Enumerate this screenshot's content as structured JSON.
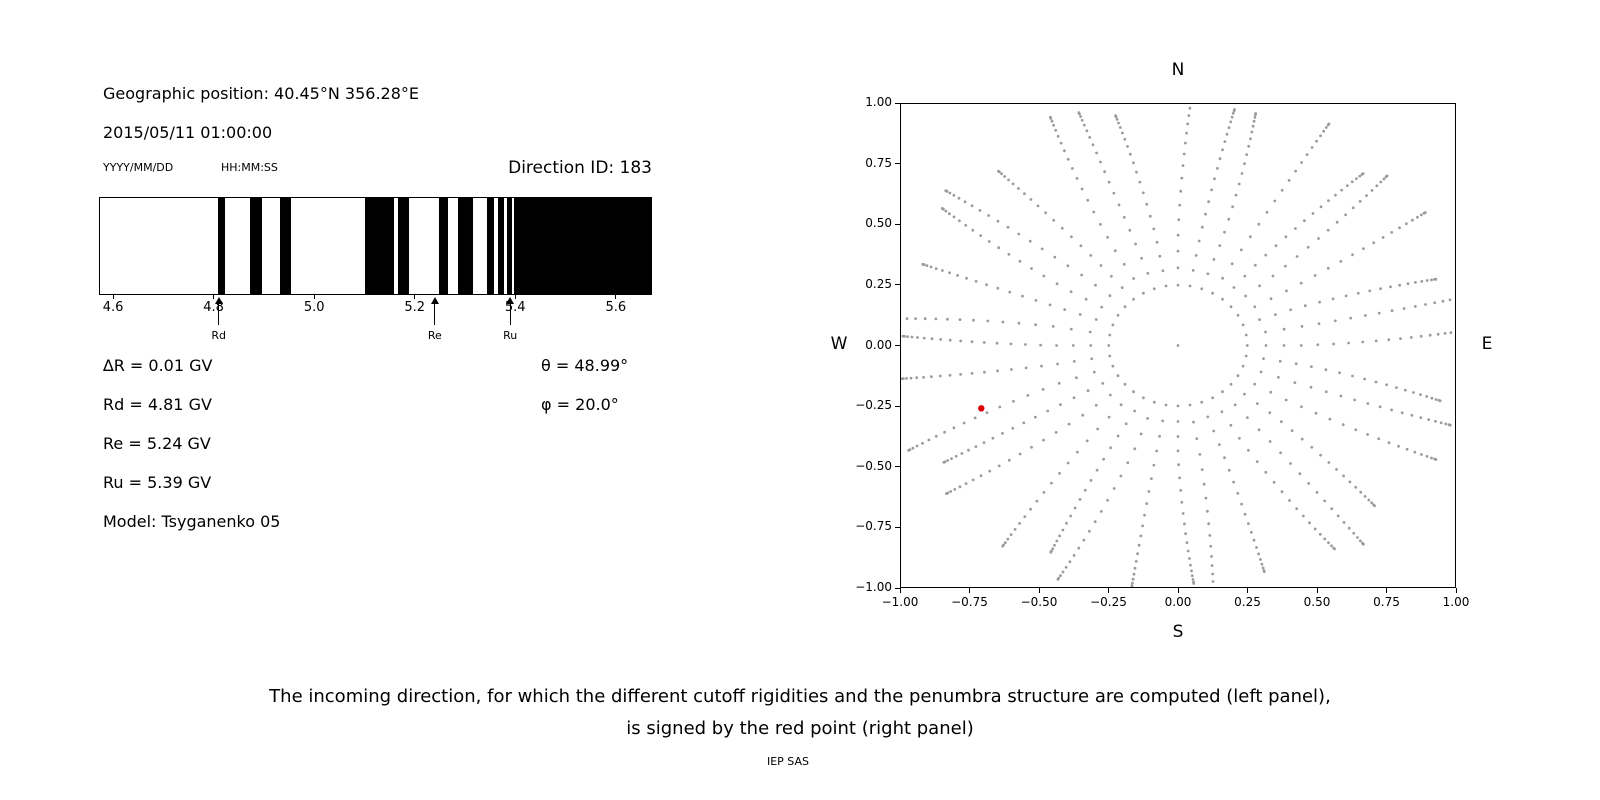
{
  "header": {
    "geo_position": "Geographic position: 40.45°N 356.28°E",
    "datetime": "2015/05/11 01:00:00",
    "date_format_label": "YYYY/MM/DD",
    "time_format_label": "HH:MM:SS",
    "direction_id": "Direction ID: 183"
  },
  "info": {
    "delta_r": "∆R = 0.01 GV",
    "rd": "Rd = 4.81 GV",
    "re": "Re = 5.24 GV",
    "ru": "Ru = 5.39 GV",
    "model": "Model: Tsyganenko 05",
    "theta": "θ = 48.99°",
    "phi": "φ = 20.0°"
  },
  "caption": {
    "line1": "The incoming direction, for which the different cutoff rigidities and the penumbra structure are computed (left panel),",
    "line2": "is signed by the red point (right panel)",
    "credit": "IEP SAS"
  },
  "chart_data": [
    {
      "type": "bar",
      "description": "Penumbra structure: black bands over rigidity (GV)",
      "x_range": [
        4.572,
        5.672
      ],
      "bar_color": "#000000",
      "x_ticks": [
        {
          "v": 4.6,
          "label": "4.6"
        },
        {
          "v": 4.8,
          "label": "4.8"
        },
        {
          "v": 5.0,
          "label": "5.0"
        },
        {
          "v": 5.2,
          "label": "5.2"
        },
        {
          "v": 5.4,
          "label": "5.4"
        },
        {
          "v": 5.6,
          "label": "5.6"
        }
      ],
      "bands_gv": [
        [
          4.807,
          4.821
        ],
        [
          4.87,
          4.894
        ],
        [
          4.93,
          4.952
        ],
        [
          5.099,
          5.156
        ],
        [
          5.165,
          5.187
        ],
        [
          5.246,
          5.264
        ],
        [
          5.284,
          5.314
        ],
        [
          5.342,
          5.356
        ],
        [
          5.364,
          5.376
        ],
        [
          5.381,
          5.391
        ],
        [
          5.395,
          5.672
        ]
      ],
      "markers": [
        {
          "label": "Rd",
          "value": 4.81
        },
        {
          "label": "Re",
          "value": 5.24
        },
        {
          "label": "Ru",
          "value": 5.39
        }
      ],
      "values_gv": {
        "delta_r": 0.01,
        "rd": 4.81,
        "re": 5.24,
        "ru": 5.39
      },
      "model": "Tsyganenko 05"
    },
    {
      "type": "scatter",
      "description": "Asymptotic direction map; gray radial spokes of dots, red point marks incoming direction",
      "xlim": [
        -1,
        1
      ],
      "ylim": [
        -1,
        1
      ],
      "x_ticks": [
        {
          "v": -1.0,
          "label": "−1.00"
        },
        {
          "v": -0.75,
          "label": "−0.75"
        },
        {
          "v": -0.5,
          "label": "−0.50"
        },
        {
          "v": -0.25,
          "label": "−0.25"
        },
        {
          "v": 0.0,
          "label": "0.00"
        },
        {
          "v": 0.25,
          "label": "0.25"
        },
        {
          "v": 0.5,
          "label": "0.50"
        },
        {
          "v": 0.75,
          "label": "0.75"
        },
        {
          "v": 1.0,
          "label": "1.00"
        }
      ],
      "y_ticks": [
        {
          "v": 1.0,
          "label": "1.00"
        },
        {
          "v": 0.75,
          "label": "0.75"
        },
        {
          "v": 0.5,
          "label": "0.50"
        },
        {
          "v": 0.25,
          "label": "0.25"
        },
        {
          "v": 0.0,
          "label": "0.00"
        },
        {
          "v": -0.25,
          "label": "−0.25"
        },
        {
          "v": -0.5,
          "label": "−0.50"
        },
        {
          "v": -0.75,
          "label": "−0.75"
        },
        {
          "v": -1.0,
          "label": "−1.00"
        }
      ],
      "compass": {
        "top": "N",
        "bottom": "S",
        "left": "W",
        "right": "E"
      },
      "dot_color": "#9b9b9b",
      "red_point": {
        "x": -0.71,
        "y": -0.26,
        "color": "#dd0000",
        "theta_deg": 48.99,
        "phi_deg": 20.0
      },
      "spokes": {
        "count": 36,
        "r_min": 0.25,
        "r_max": 1.02,
        "dots_per_spoke": 20
      }
    }
  ]
}
